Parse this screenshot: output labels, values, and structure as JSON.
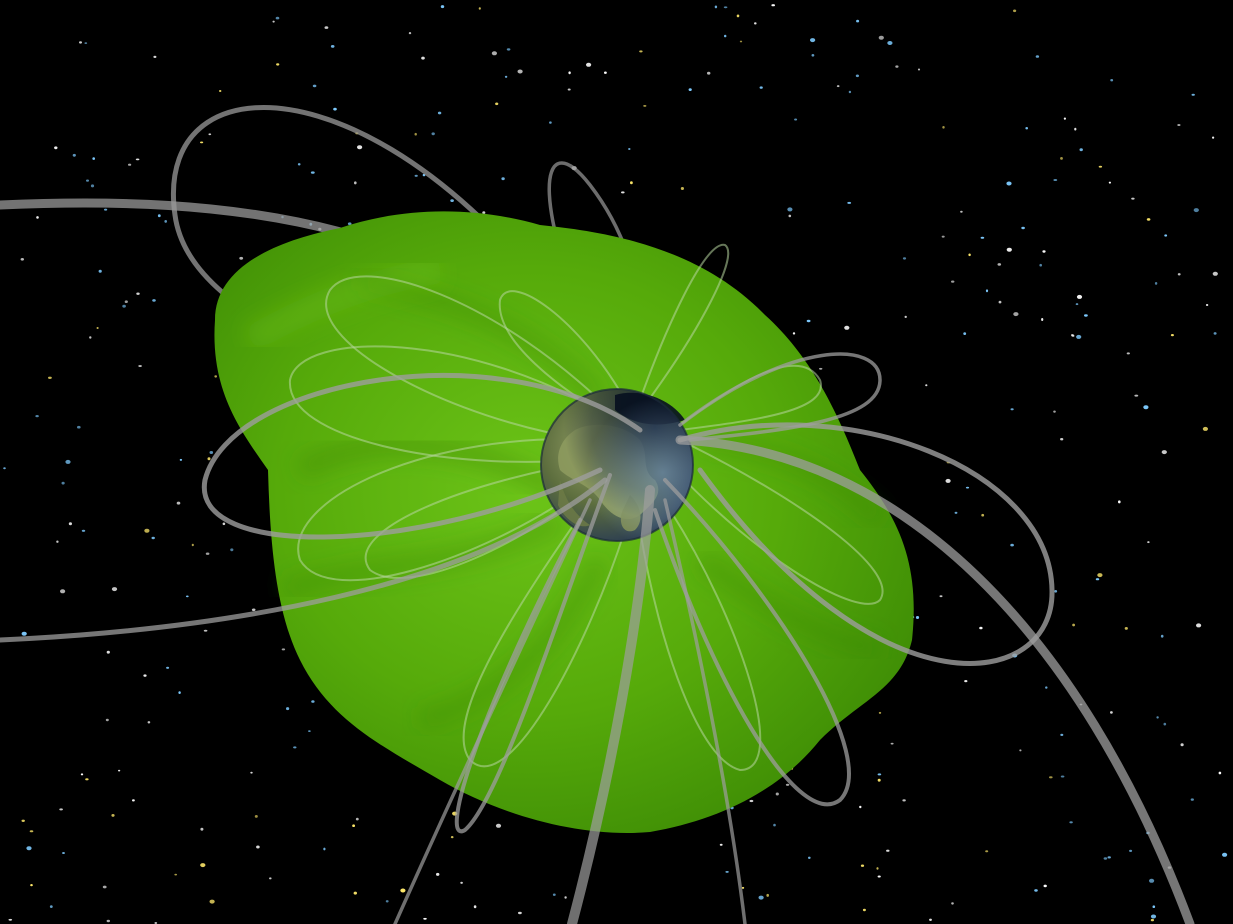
{
  "scene": {
    "subject": "earth-magnetosphere-visualization",
    "colors": {
      "space": "#000000",
      "plasma_light": "#5fb80e",
      "plasma_mid": "#4fa008",
      "plasma_dark": "#2f7004",
      "field_line": "#a6a6a6",
      "earth_land": "#7a8d4e",
      "earth_ocean": "#2e4a66",
      "earth_night": "#0d1626",
      "star_white": "#ffffff",
      "star_blue": "#7ecbff",
      "star_yellow": "#ffe96b"
    },
    "icons": [
      "earth-globe",
      "plasma-cloud",
      "magnetic-field-lines",
      "star-field"
    ]
  }
}
